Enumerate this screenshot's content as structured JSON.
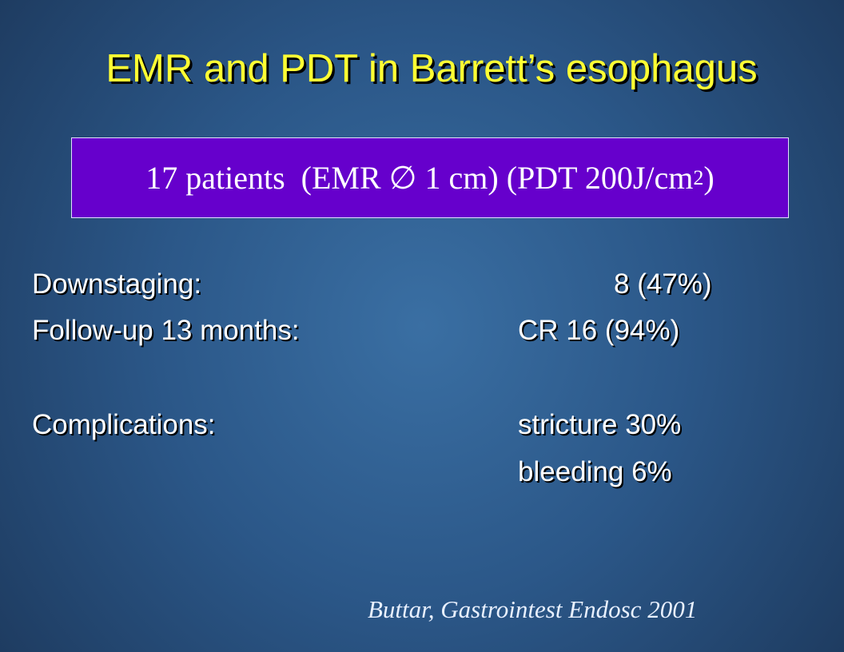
{
  "header": {
    "title": "EMR and PDT in Barrett’s esophagus"
  },
  "box": {
    "text": "17 patients  (EMR ∅ 1 cm) (PDT 200J/cm",
    "superscript": "2",
    "closing": ")"
  },
  "rows": [
    {
      "label": "Downstaging:",
      "value": "8 (47%)"
    },
    {
      "label": "Follow-up 13 months:",
      "value": "CR 16 (94%)"
    },
    {
      "label": "Complications:",
      "value": "stricture 30%"
    },
    {
      "label": null,
      "value": "bleeding 6%"
    }
  ],
  "citation": "Buttar, Gastrointest Endosc 2001"
}
